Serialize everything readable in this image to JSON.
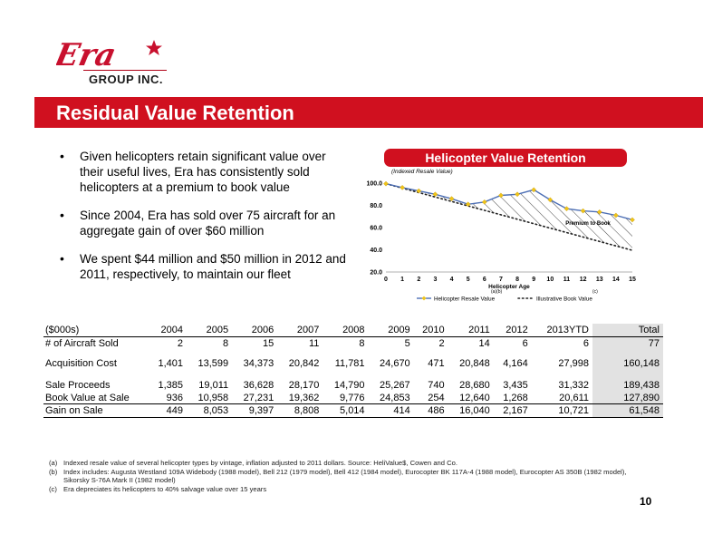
{
  "logo": {
    "wordmark": "Era",
    "subtitle": "GROUP INC."
  },
  "title": "Residual Value Retention",
  "bullets": [
    "Given helicopters retain significant value over their useful lives, Era has consistently sold helicopters at a premium to book value",
    "Since 2004, Era has sold over 75 aircraft for an aggregate gain of over $60 million",
    "We spent $44 million and $50 million in 2012 and 2011, respectively, to maintain our fleet"
  ],
  "chart_header": "Helicopter Value Retention",
  "chart_data": {
    "type": "line",
    "title": "",
    "ylabel": "(Indexed Resale Value)",
    "xlabel": "Helicopter Age",
    "x": [
      0,
      1,
      2,
      3,
      4,
      5,
      6,
      7,
      8,
      9,
      10,
      11,
      12,
      13,
      14,
      15
    ],
    "ylim": [
      20,
      100
    ],
    "xlim": [
      0,
      15
    ],
    "yticks": [
      "20.0",
      "40.0",
      "60.0",
      "80.0",
      "100.0"
    ],
    "xticks": [
      "0",
      "1",
      "2",
      "3",
      "4",
      "5",
      "6",
      "7",
      "8",
      "9",
      "10",
      "11",
      "12",
      "13",
      "14",
      "15"
    ],
    "grid": false,
    "series": [
      {
        "name": "Helicopter Resale Value",
        "color": "#4d6fb5",
        "marker_color": "#f0c419",
        "style": "solid",
        "values": [
          99.5,
          96,
          93,
          90,
          86,
          81,
          83,
          89,
          90,
          94,
          85,
          77,
          75,
          74,
          71,
          67
        ]
      },
      {
        "name": "Illustrative Book Value",
        "color": "#222222",
        "style": "dotted",
        "values": [
          99.5,
          95.5,
          91.5,
          87.5,
          83.5,
          79.5,
          75.5,
          71.5,
          67.5,
          63.5,
          59.5,
          55.5,
          51.5,
          47.5,
          43.5,
          39.5
        ]
      }
    ],
    "annotation": "Premium to Book",
    "legend_position": "bottom",
    "legend_notes": [
      "(a)(b)",
      "(c)"
    ],
    "hatch_fill": "between series"
  },
  "table": {
    "columns": [
      "($000s)",
      "2004",
      "2005",
      "2006",
      "2007",
      "2008",
      "2009",
      "2010",
      "2011",
      "2012",
      "2013YTD",
      "Total"
    ],
    "rows": [
      [
        "# of Aircraft Sold",
        "2",
        "8",
        "15",
        "11",
        "8",
        "5",
        "2",
        "14",
        "6",
        "6",
        "77"
      ],
      [
        "Acquisition Cost",
        "1,401",
        "13,599",
        "34,373",
        "20,842",
        "11,781",
        "24,670",
        "471",
        "20,848",
        "4,164",
        "27,998",
        "160,148"
      ],
      [
        "Sale Proceeds",
        "1,385",
        "19,011",
        "36,628",
        "28,170",
        "14,790",
        "25,267",
        "740",
        "28,680",
        "3,435",
        "31,332",
        "189,438"
      ],
      [
        "Book Value at Sale",
        "936",
        "10,958",
        "27,231",
        "19,362",
        "9,776",
        "24,853",
        "254",
        "12,640",
        "1,268",
        "20,611",
        "127,890"
      ],
      [
        "Gain on Sale",
        "449",
        "8,053",
        "9,397",
        "8,808",
        "5,014",
        "414",
        "486",
        "16,040",
        "2,167",
        "10,721",
        "61,548"
      ]
    ]
  },
  "footnotes": [
    {
      "marker": "(a)",
      "text": "Indexed resale value of several helicopter types by vintage, inflation adjusted to 2011 dollars. Source: HeliValue$, Cowen and Co."
    },
    {
      "marker": "(b)",
      "text": "Index includes: Augusta Westland 109A Widebody (1988 model), Bell 212 (1979 model), Bell 412 (1984 model), Eurocopter BK 117A-4 (1988 model), Eurocopter AS 350B (1982 model), Sikorsky S-76A Mark II (1982 model)"
    },
    {
      "marker": "(c)",
      "text": "Era depreciates its helicopters to 40% salvage value over 15 years"
    }
  ],
  "page_number": "10",
  "colors": {
    "brand_red": "#d0101f",
    "total_col_bg": "#e2e2e2"
  }
}
